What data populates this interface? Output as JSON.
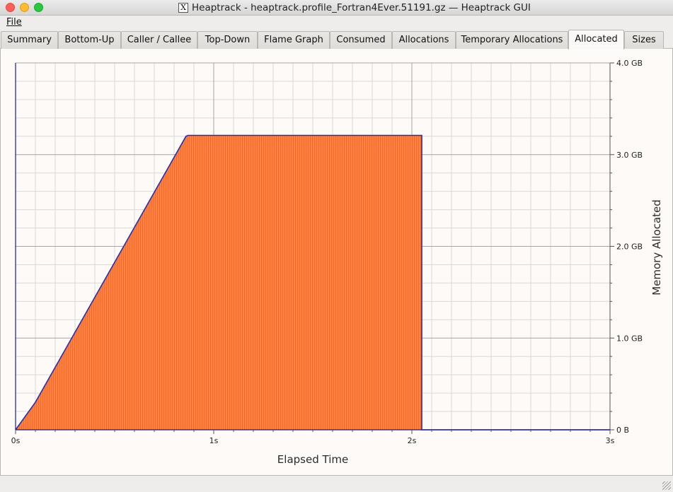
{
  "window": {
    "title": "Heaptrack - heaptrack.profile_Fortran4Ever.51191.gz — Heaptrack GUI",
    "app_icon_glyph": "X"
  },
  "menu": {
    "file": "File"
  },
  "tabs": [
    {
      "label": "Summary"
    },
    {
      "label": "Bottom-Up"
    },
    {
      "label": "Caller / Callee"
    },
    {
      "label": "Top-Down"
    },
    {
      "label": "Flame Graph"
    },
    {
      "label": "Consumed"
    },
    {
      "label": "Allocations"
    },
    {
      "label": "Temporary Allocations"
    },
    {
      "label": "Allocated",
      "active": true
    },
    {
      "label": "Sizes"
    }
  ],
  "chart_data": {
    "type": "area",
    "xlabel": "Elapsed Time",
    "ylabel": "Memory Allocated",
    "x_ticks": [
      "0s",
      "1s",
      "2s",
      "3s"
    ],
    "y_ticks": [
      "0 B",
      "1.0 GB",
      "2.0 GB",
      "3.0 GB",
      "4.0 GB"
    ],
    "xlim": [
      0,
      3
    ],
    "ylim": [
      0,
      4.0
    ],
    "x_unit": "s",
    "y_unit": "GB",
    "grid": true,
    "series": [
      {
        "fill_color": "#ff7f3f",
        "line_color": "#2a2fa8",
        "points": [
          {
            "x": 0.0,
            "y": 0.0
          },
          {
            "x": 0.1,
            "y": 0.3
          },
          {
            "x": 0.86,
            "y": 3.2
          },
          {
            "x": 0.87,
            "y": 3.21
          },
          {
            "x": 2.05,
            "y": 3.21
          },
          {
            "x": 2.05,
            "y": 0.0
          },
          {
            "x": 3.0,
            "y": 0.0
          }
        ]
      }
    ]
  }
}
